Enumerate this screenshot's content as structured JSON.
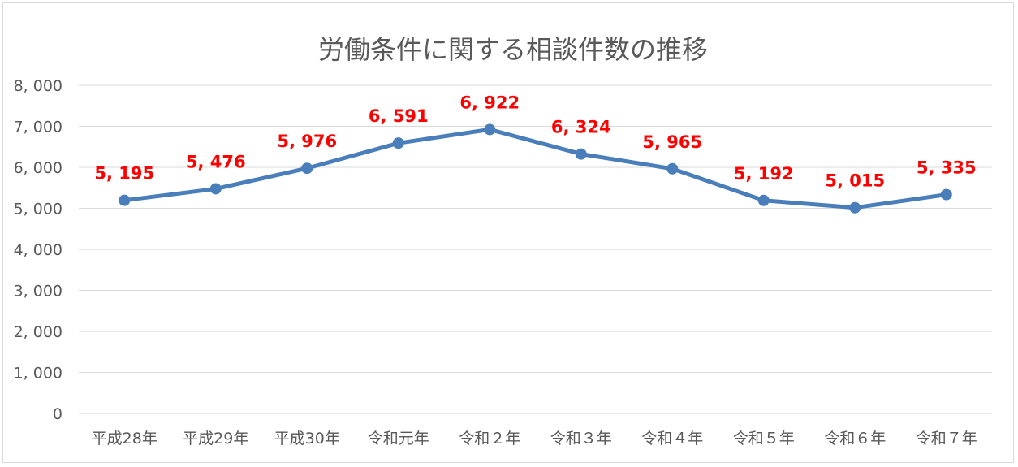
{
  "chart_data": {
    "type": "line",
    "title": "労働条件に関する相談件数の推移",
    "xlabel": "",
    "ylabel": "",
    "categories": [
      "平成28年",
      "平成29年",
      "平成30年",
      "令和元年",
      "令和２年",
      "令和３年",
      "令和４年",
      "令和５年",
      "令和６年",
      "令和７年"
    ],
    "series": [
      {
        "values": [
          5195,
          5476,
          5976,
          6591,
          6922,
          6324,
          5965,
          5192,
          5015,
          5335
        ],
        "labels": [
          "5, 195",
          "5, 476",
          "5, 976",
          "6, 591",
          "6, 922",
          "6, 324",
          "5, 965",
          "5, 192",
          "5, 015",
          "5, 335"
        ]
      }
    ],
    "ylim": [
      0,
      8000
    ],
    "yticks": [
      0,
      1000,
      2000,
      3000,
      4000,
      5000,
      6000,
      7000,
      8000
    ],
    "ytick_labels": [
      "0",
      "1, 000",
      "2, 000",
      "3, 000",
      "4, 000",
      "5, 000",
      "6, 000",
      "7, 000",
      "8, 000"
    ],
    "grid": true,
    "legend": "none",
    "colors": {
      "line": "#4a7ebb",
      "data_label": "#ff0000",
      "gridline": "#d9d9d9",
      "text": "#595959"
    }
  }
}
